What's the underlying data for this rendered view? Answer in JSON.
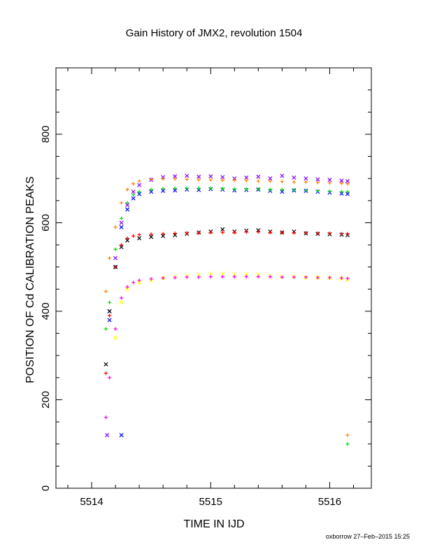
{
  "chart_data": {
    "type": "scatter",
    "title": "Gain History of JMX2, revolution 1504",
    "xlabel": "TIME IN IJD",
    "ylabel": "POSITION OF Cd CALIBRATION PEAKS",
    "xlim": [
      5513.7,
      5516.35
    ],
    "ylim": [
      0,
      950
    ],
    "x_ticks": [
      5514,
      5515,
      5516
    ],
    "x_tick_labels": [
      "5514",
      "5515",
      "5516"
    ],
    "y_ticks": [
      0,
      200,
      400,
      600,
      800
    ],
    "y_tick_labels": [
      "0",
      "200",
      "400",
      "600",
      "800"
    ],
    "grid": false,
    "legend": "none",
    "footer": "oxborrow 27–Feb–2015 15:25",
    "series": [
      {
        "color": "#8000ff",
        "marker": "x",
        "x": [
          5514.15,
          5514.2,
          5514.25,
          5514.3,
          5514.35,
          5514.4,
          5514.5,
          5514.6,
          5514.7,
          5514.8,
          5514.9,
          5515.0,
          5515.1,
          5515.2,
          5515.3,
          5515.4,
          5515.5,
          5515.6,
          5515.7,
          5515.8,
          5515.9,
          5516.0,
          5516.1,
          5516.15
        ],
        "y": [
          400,
          520,
          600,
          640,
          670,
          685,
          697,
          703,
          705,
          706,
          704,
          705,
          703,
          700,
          702,
          704,
          700,
          706,
          702,
          700,
          698,
          697,
          695,
          694
        ]
      },
      {
        "color": "#0000ff",
        "marker": "x",
        "x": [
          5514.15,
          5514.2,
          5514.25,
          5514.3,
          5514.35,
          5514.4,
          5514.5,
          5514.6,
          5514.7,
          5514.8,
          5514.9,
          5515.0,
          5515.1,
          5515.2,
          5515.3,
          5515.4,
          5515.5,
          5515.6,
          5515.7,
          5515.8,
          5515.9,
          5516.0,
          5516.1,
          5516.15
        ],
        "y": [
          380,
          500,
          590,
          630,
          655,
          665,
          670,
          672,
          673,
          675,
          674,
          676,
          675,
          673,
          674,
          675,
          672,
          670,
          673,
          672,
          670,
          668,
          666,
          665
        ]
      },
      {
        "color": "#00e000",
        "marker": "+",
        "x": [
          5514.12,
          5514.15,
          5514.2,
          5514.25,
          5514.3,
          5514.35,
          5514.4,
          5514.5,
          5514.6,
          5514.7,
          5514.8,
          5514.9,
          5515.0,
          5515.1,
          5515.2,
          5515.3,
          5515.4,
          5515.5,
          5515.6,
          5515.7,
          5515.8,
          5515.9,
          5516.0,
          5516.1,
          5516.15
        ],
        "y": [
          360,
          420,
          540,
          610,
          645,
          663,
          670,
          675,
          677,
          678,
          678,
          678,
          678,
          677,
          676,
          676,
          676,
          675,
          675,
          674,
          673,
          672,
          671,
          670,
          670
        ]
      },
      {
        "color": "#ff8000",
        "marker": "+",
        "x": [
          5514.12,
          5514.15,
          5514.2,
          5514.25,
          5514.3,
          5514.35,
          5514.4,
          5514.5,
          5514.6,
          5514.7,
          5514.8,
          5514.9,
          5515.0,
          5515.1,
          5515.2,
          5515.3,
          5515.4,
          5515.5,
          5515.6,
          5515.7,
          5515.8,
          5515.9,
          5516.0,
          5516.1,
          5516.15
        ],
        "y": [
          445,
          520,
          590,
          645,
          675,
          688,
          694,
          698,
          699,
          699,
          698,
          697,
          697,
          696,
          696,
          695,
          694,
          694,
          693,
          692,
          692,
          691,
          690,
          689,
          688
        ]
      },
      {
        "color": "#000000",
        "marker": "x",
        "x": [
          5514.12,
          5514.15,
          5514.2,
          5514.25,
          5514.3,
          5514.4,
          5514.5,
          5514.6,
          5514.7,
          5514.8,
          5514.9,
          5515.0,
          5515.1,
          5515.2,
          5515.3,
          5515.4,
          5515.5,
          5515.6,
          5515.7,
          5515.8,
          5515.9,
          5516.0,
          5516.1,
          5516.15
        ],
        "y": [
          280,
          400,
          500,
          545,
          560,
          565,
          568,
          570,
          572,
          575,
          578,
          580,
          585,
          580,
          582,
          583,
          580,
          578,
          580,
          576,
          575,
          574,
          573,
          572
        ]
      },
      {
        "color": "#ff0000",
        "marker": "+",
        "x": [
          5514.12,
          5514.15,
          5514.2,
          5514.25,
          5514.3,
          5514.35,
          5514.4,
          5514.5,
          5514.6,
          5514.7,
          5514.8,
          5514.9,
          5515.0,
          5515.1,
          5515.2,
          5515.3,
          5515.4,
          5515.5,
          5515.6,
          5515.7,
          5515.8,
          5515.9,
          5516.0,
          5516.1,
          5516.15
        ],
        "y": [
          260,
          390,
          500,
          550,
          565,
          570,
          573,
          574,
          575,
          576,
          577,
          577,
          578,
          578,
          578,
          579,
          579,
          578,
          578,
          577,
          577,
          576,
          576,
          575,
          575
        ]
      },
      {
        "color": "#ffff00",
        "marker": "x",
        "x": [
          5514.2,
          5514.25,
          5514.3,
          5514.4,
          5514.5,
          5514.6,
          5514.7,
          5514.8,
          5514.9,
          5515.0,
          5515.1,
          5515.2,
          5515.3,
          5515.4,
          5515.5,
          5515.6,
          5515.7,
          5515.8,
          5515.9,
          5516.0,
          5516.1,
          5516.15
        ],
        "y": [
          340,
          420,
          450,
          465,
          470,
          475,
          478,
          480,
          482,
          485,
          485,
          483,
          484,
          483,
          480,
          478,
          478,
          476,
          476,
          475,
          474,
          472
        ]
      },
      {
        "color": "#ff00ff",
        "marker": "+",
        "x": [
          5514.12,
          5514.15,
          5514.2,
          5514.25,
          5514.3,
          5514.35,
          5514.4,
          5514.5,
          5514.6,
          5514.7,
          5514.8,
          5514.9,
          5515.0,
          5515.1,
          5515.2,
          5515.3,
          5515.4,
          5515.5,
          5515.6,
          5515.7,
          5515.8,
          5515.9,
          5516.0,
          5516.1,
          5516.15
        ],
        "y": [
          160,
          250,
          360,
          430,
          455,
          465,
          470,
          473,
          475,
          476,
          477,
          477,
          478,
          478,
          478,
          478,
          478,
          478,
          477,
          477,
          477,
          476,
          476,
          475,
          474
        ]
      }
    ],
    "outliers": [
      {
        "color": "#8000ff",
        "marker": "x",
        "x": 5514.13,
        "y": 120
      },
      {
        "color": "#0000ff",
        "marker": "x",
        "x": 5514.25,
        "y": 120
      },
      {
        "color": "#ff8000",
        "marker": "+",
        "x": 5516.15,
        "y": 120
      },
      {
        "color": "#00e000",
        "marker": "+",
        "x": 5516.15,
        "y": 100
      }
    ]
  }
}
